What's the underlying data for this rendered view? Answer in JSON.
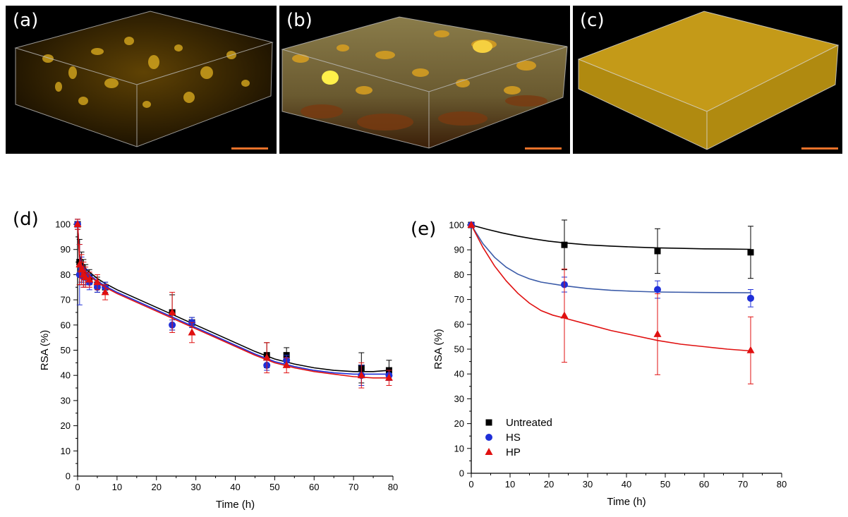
{
  "panels": {
    "a": {
      "label": "(a)"
    },
    "b": {
      "label": "(b)"
    },
    "c": {
      "label": "(c)"
    },
    "d": {
      "label": "(d)"
    },
    "e": {
      "label": "(e)"
    }
  },
  "colors": {
    "untreated": "#000000",
    "hs": "#1f2fd8",
    "hp": "#e01010",
    "hs_fit": "#3b5ba8",
    "scalebar": "#e8722a",
    "fluorescence": "#e0b020"
  },
  "chart_data": [
    {
      "type": "line",
      "title": "",
      "xlabel": "Time (h)",
      "ylabel": "RSA (%)",
      "xlim": [
        0,
        80
      ],
      "ylim": [
        0,
        100
      ],
      "xticks": [
        "0",
        "10",
        "20",
        "30",
        "40",
        "50",
        "60",
        "70",
        "80"
      ],
      "yticks": [
        "0",
        "10",
        "20",
        "30",
        "40",
        "50",
        "60",
        "70",
        "80",
        "90",
        "100"
      ],
      "grid": false,
      "legend": "none",
      "series": [
        {
          "color": "#000000",
          "marker": "square",
          "x": [
            0,
            0.5,
            1,
            1.5,
            2,
            3,
            5,
            7,
            24,
            29,
            48,
            53,
            72,
            79
          ],
          "y": [
            100,
            85,
            83,
            81,
            80,
            79,
            76,
            75,
            65,
            61,
            48,
            48,
            43,
            42
          ],
          "err": [
            2,
            9,
            6,
            5,
            4,
            3,
            3,
            2,
            7,
            2,
            5,
            3,
            6,
            4
          ],
          "fit": [
            [
              0,
              100
            ],
            [
              0.5,
              88
            ],
            [
              1,
              85
            ],
            [
              2,
              82.5
            ],
            [
              3,
              81
            ],
            [
              5,
              78.5
            ],
            [
              7,
              76.5
            ],
            [
              10,
              74
            ],
            [
              15,
              70.5
            ],
            [
              20,
              67
            ],
            [
              25,
              63.5
            ],
            [
              30,
              60
            ],
            [
              35,
              56.5
            ],
            [
              40,
              53
            ],
            [
              45,
              49.5
            ],
            [
              50,
              46.5
            ],
            [
              55,
              44.5
            ],
            [
              60,
              43
            ],
            [
              65,
              42
            ],
            [
              70,
              41.5
            ],
            [
              75,
              41.5
            ],
            [
              79,
              42
            ]
          ]
        },
        {
          "color": "#1f2fd8",
          "marker": "circle",
          "x": [
            0,
            0.5,
            1,
            1.5,
            2,
            3,
            5,
            7,
            24,
            29,
            48,
            53,
            72,
            79
          ],
          "y": [
            100,
            80,
            82,
            79,
            79,
            77,
            75,
            75,
            60,
            61,
            44,
            46,
            40,
            40
          ],
          "err": [
            2,
            12,
            5,
            4,
            3,
            3,
            2,
            2,
            2,
            2,
            2,
            2,
            4,
            2
          ],
          "fit": [
            [
              0,
              100
            ],
            [
              0.5,
              87
            ],
            [
              1,
              84
            ],
            [
              2,
              81.5
            ],
            [
              3,
              80
            ],
            [
              5,
              77.5
            ],
            [
              7,
              75.5
            ],
            [
              10,
              73
            ],
            [
              15,
              69.5
            ],
            [
              20,
              66
            ],
            [
              25,
              62.5
            ],
            [
              30,
              59
            ],
            [
              35,
              55.5
            ],
            [
              40,
              52
            ],
            [
              45,
              48.5
            ],
            [
              50,
              45.5
            ],
            [
              55,
              43.5
            ],
            [
              60,
              42
            ],
            [
              65,
              41
            ],
            [
              70,
              40.5
            ],
            [
              75,
              40.5
            ],
            [
              79,
              40.5
            ]
          ]
        },
        {
          "color": "#e01010",
          "marker": "triangle",
          "x": [
            0,
            0.5,
            1,
            1.5,
            2,
            3,
            5,
            7,
            24,
            29,
            48,
            53,
            72,
            79
          ],
          "y": [
            100,
            84,
            82,
            80,
            79,
            78,
            77,
            73,
            65,
            57,
            47,
            44,
            40,
            39
          ],
          "err": [
            2,
            8,
            6,
            5,
            4,
            3,
            3,
            3,
            8,
            4,
            6,
            3,
            5,
            3
          ],
          "fit": [
            [
              0,
              100
            ],
            [
              0.5,
              86
            ],
            [
              1,
              83.5
            ],
            [
              2,
              81
            ],
            [
              3,
              79.5
            ],
            [
              5,
              77
            ],
            [
              7,
              75
            ],
            [
              10,
              72.5
            ],
            [
              15,
              69
            ],
            [
              20,
              65.5
            ],
            [
              25,
              62
            ],
            [
              30,
              58.5
            ],
            [
              35,
              55
            ],
            [
              40,
              51.5
            ],
            [
              45,
              48
            ],
            [
              50,
              45
            ],
            [
              55,
              43
            ],
            [
              60,
              41.5
            ],
            [
              65,
              40.5
            ],
            [
              70,
              39.5
            ],
            [
              75,
              39
            ],
            [
              79,
              39
            ]
          ]
        }
      ]
    },
    {
      "type": "line",
      "title": "",
      "xlabel": "Time (h)",
      "ylabel": "RSA (%)",
      "xlim": [
        0,
        80
      ],
      "ylim": [
        0,
        100
      ],
      "xticks": [
        "0",
        "10",
        "20",
        "30",
        "40",
        "50",
        "60",
        "70",
        "80"
      ],
      "yticks": [
        "0",
        "10",
        "20",
        "30",
        "40",
        "50",
        "60",
        "70",
        "80",
        "90",
        "100"
      ],
      "grid": false,
      "legend": "bottom-left",
      "series": [
        {
          "name": "Untreated",
          "color": "#000000",
          "marker": "square",
          "x": [
            0,
            24,
            48,
            72
          ],
          "y": [
            100,
            92,
            89.5,
            89
          ],
          "err": [
            0,
            10,
            9,
            10.5
          ],
          "fit": [
            [
              0,
              100
            ],
            [
              4,
              98.3
            ],
            [
              8,
              96.8
            ],
            [
              12,
              95.5
            ],
            [
              16,
              94.4
            ],
            [
              20,
              93.5
            ],
            [
              24,
              92.8
            ],
            [
              30,
              92
            ],
            [
              36,
              91.5
            ],
            [
              42,
              91.1
            ],
            [
              48,
              90.8
            ],
            [
              54,
              90.6
            ],
            [
              60,
              90.4
            ],
            [
              66,
              90.3
            ],
            [
              72,
              90.2
            ]
          ]
        },
        {
          "name": "HS",
          "color": "#1f2fd8",
          "marker": "circle",
          "x": [
            0,
            24,
            48,
            72
          ],
          "y": [
            100,
            76,
            74,
            70.5
          ],
          "err": [
            0,
            3,
            3.5,
            3.5
          ],
          "fit": [
            [
              0,
              100
            ],
            [
              3,
              92.5
            ],
            [
              6,
              87
            ],
            [
              9,
              83
            ],
            [
              12,
              80.2
            ],
            [
              15,
              78.3
            ],
            [
              18,
              77
            ],
            [
              24,
              75.5
            ],
            [
              30,
              74.4
            ],
            [
              36,
              73.7
            ],
            [
              42,
              73.3
            ],
            [
              48,
              73
            ],
            [
              60,
              72.8
            ],
            [
              72,
              72.7
            ]
          ]
        },
        {
          "name": "HP",
          "color": "#e01010",
          "marker": "triangle",
          "x": [
            0,
            24,
            48,
            72
          ],
          "y": [
            100,
            63.5,
            56,
            49.5
          ],
          "err": [
            0,
            18.8,
            16.3,
            13.5
          ],
          "fit": [
            [
              0,
              100
            ],
            [
              3,
              91
            ],
            [
              6,
              83.5
            ],
            [
              9,
              77.5
            ],
            [
              12,
              72.5
            ],
            [
              15,
              68.5
            ],
            [
              18,
              65.5
            ],
            [
              21,
              63.7
            ],
            [
              24,
              62.5
            ],
            [
              30,
              60
            ],
            [
              36,
              57.5
            ],
            [
              42,
              55.5
            ],
            [
              48,
              53.5
            ],
            [
              54,
              52
            ],
            [
              60,
              51
            ],
            [
              66,
              50
            ],
            [
              72,
              49.3
            ]
          ]
        }
      ]
    }
  ]
}
